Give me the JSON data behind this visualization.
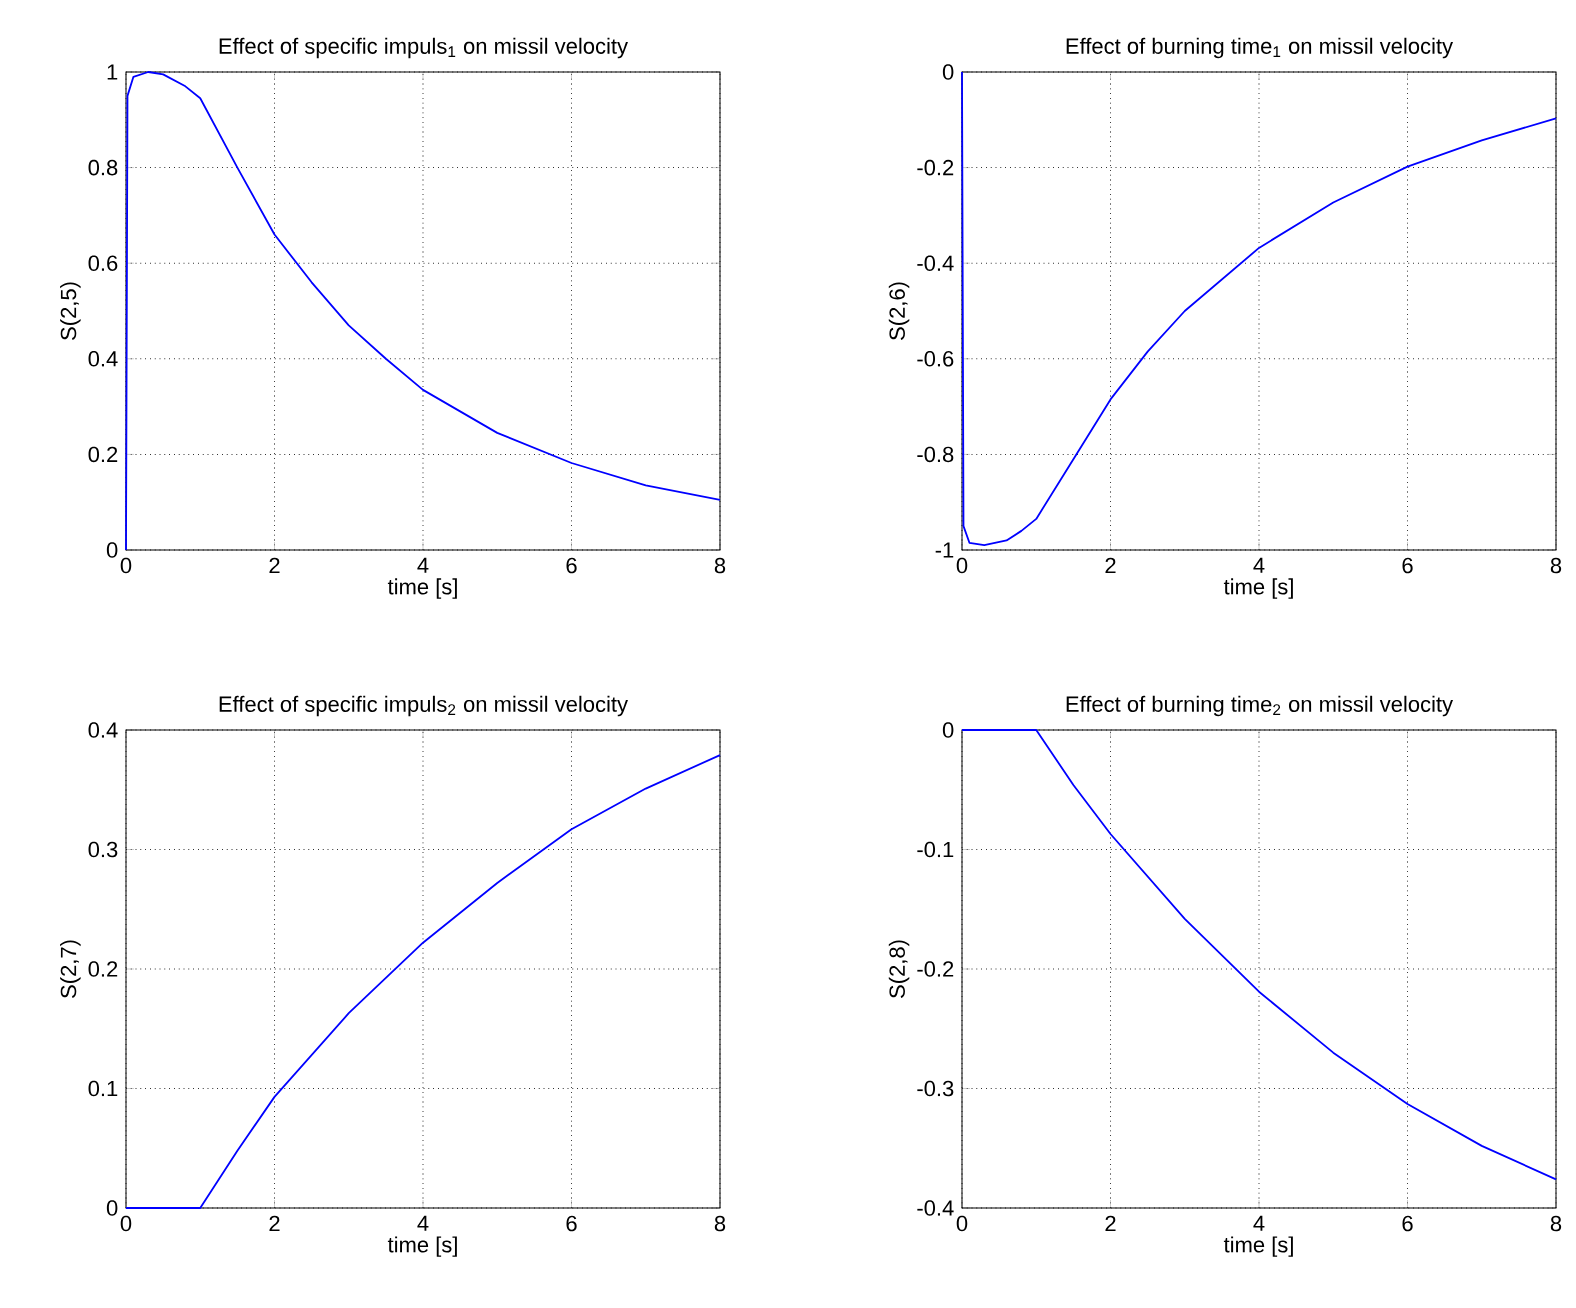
{
  "chart_data": [
    {
      "type": "line",
      "title": "Effect of specific impuls$_{1}$ on missil velocity",
      "xlabel": "time [s]",
      "ylabel": "S(2,5)",
      "xlim": [
        0,
        8
      ],
      "ylim": [
        0,
        1
      ],
      "xticks": [
        0,
        2,
        4,
        6,
        8
      ],
      "yticks": [
        0,
        0.2,
        0.4,
        0.6,
        0.8,
        1
      ],
      "grid": true,
      "marker": "none",
      "line_style": "solid",
      "series": [
        {
          "color": "#0000ff",
          "x": [
            0,
            0.02,
            0.1,
            0.3,
            0.5,
            0.8,
            1,
            1.5,
            2,
            2.5,
            3,
            3.5,
            4,
            5,
            6,
            7,
            8
          ],
          "values": [
            0,
            0.95,
            0.99,
            1.0,
            0.995,
            0.97,
            0.945,
            0.8,
            0.66,
            0.56,
            0.47,
            0.4,
            0.335,
            0.245,
            0.182,
            0.135,
            0.105
          ]
        }
      ]
    },
    {
      "type": "line",
      "title": "Effect of burning time$_{1}$ on missil velocity",
      "xlabel": "time [s]",
      "ylabel": "S(2,6)",
      "xlim": [
        0,
        8
      ],
      "ylim": [
        -1,
        0
      ],
      "xticks": [
        0,
        2,
        4,
        6,
        8
      ],
      "yticks": [
        -1,
        -0.8,
        -0.6,
        -0.4,
        -0.2,
        0
      ],
      "grid": true,
      "marker": "none",
      "line_style": "solid",
      "series": [
        {
          "color": "#0000ff",
          "x": [
            0,
            0.02,
            0.1,
            0.3,
            0.6,
            0.8,
            1,
            1.5,
            2,
            2.5,
            3,
            4,
            5,
            6,
            7,
            8
          ],
          "values": [
            0,
            -0.95,
            -0.985,
            -0.99,
            -0.98,
            -0.96,
            -0.935,
            -0.81,
            -0.685,
            -0.585,
            -0.5,
            -0.368,
            -0.273,
            -0.198,
            -0.143,
            -0.097
          ]
        }
      ]
    },
    {
      "type": "line",
      "title": "Effect of specific impuls$_{2}$ on missil velocity",
      "xlabel": "time [s]",
      "ylabel": "S(2,7)",
      "xlim": [
        0,
        8
      ],
      "ylim": [
        0,
        0.4
      ],
      "xticks": [
        0,
        2,
        4,
        6,
        8
      ],
      "yticks": [
        0,
        0.1,
        0.2,
        0.3,
        0.4
      ],
      "grid": true,
      "marker": "none",
      "line_style": "solid",
      "series": [
        {
          "color": "#0000ff",
          "x": [
            0,
            1,
            1.5,
            2,
            3,
            4,
            5,
            6,
            7,
            8
          ],
          "values": [
            0,
            0,
            0.048,
            0.093,
            0.163,
            0.222,
            0.272,
            0.317,
            0.351,
            0.379
          ]
        }
      ]
    },
    {
      "type": "line",
      "title": "Effect of burning time$_{2}$ on missil velocity",
      "xlabel": "time [s]",
      "ylabel": "S(2,8)",
      "xlim": [
        0,
        8
      ],
      "ylim": [
        -0.4,
        0
      ],
      "xticks": [
        0,
        2,
        4,
        6,
        8
      ],
      "yticks": [
        -0.4,
        -0.3,
        -0.2,
        -0.1,
        0
      ],
      "grid": true,
      "marker": "none",
      "line_style": "solid",
      "series": [
        {
          "color": "#0000ff",
          "x": [
            0,
            1,
            1.5,
            2,
            3,
            4,
            5,
            6,
            7,
            8
          ],
          "values": [
            0,
            0,
            -0.046,
            -0.087,
            -0.158,
            -0.219,
            -0.27,
            -0.313,
            -0.348,
            -0.376
          ]
        }
      ]
    }
  ]
}
